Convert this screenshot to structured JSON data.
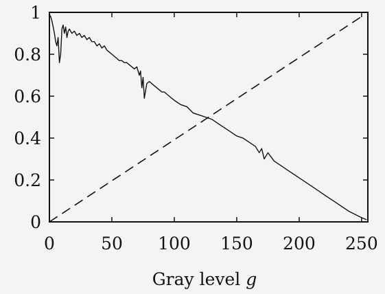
{
  "chart_data": {
    "type": "line",
    "title": "",
    "xlabel": "Gray level ",
    "xlabel_var": "g",
    "ylabel": "",
    "xlim": [
      0,
      255
    ],
    "ylim": [
      0,
      1
    ],
    "xticks": [
      "0",
      "50",
      "100",
      "150",
      "200",
      "250"
    ],
    "yticks": [
      "0",
      "0.2",
      "0.4",
      "0.6",
      "0.8",
      "1"
    ],
    "grid": false,
    "legend": "none",
    "series": [
      {
        "style": "solid",
        "color": "#111111",
        "x": [
          0,
          1,
          2,
          3,
          4,
          5,
          6,
          7,
          8,
          9,
          10,
          11,
          12,
          13,
          14,
          15,
          16,
          18,
          20,
          22,
          24,
          26,
          28,
          30,
          32,
          34,
          36,
          38,
          40,
          42,
          44,
          46,
          48,
          50,
          52,
          54,
          56,
          58,
          60,
          62,
          64,
          66,
          68,
          70,
          72,
          73,
          74,
          75,
          76,
          78,
          80,
          82,
          84,
          86,
          88,
          90,
          92,
          94,
          96,
          98,
          100,
          105,
          110,
          115,
          120,
          125,
          130,
          135,
          140,
          145,
          150,
          155,
          160,
          165,
          168,
          170,
          172,
          175,
          180,
          185,
          190,
          200,
          210,
          220,
          230,
          240,
          250,
          254
        ],
        "y": [
          0.99,
          0.98,
          0.96,
          0.93,
          0.9,
          0.86,
          0.84,
          0.88,
          0.76,
          0.8,
          0.92,
          0.94,
          0.9,
          0.93,
          0.88,
          0.91,
          0.92,
          0.9,
          0.91,
          0.89,
          0.9,
          0.88,
          0.89,
          0.87,
          0.88,
          0.86,
          0.86,
          0.84,
          0.85,
          0.83,
          0.84,
          0.82,
          0.81,
          0.8,
          0.79,
          0.78,
          0.77,
          0.77,
          0.76,
          0.76,
          0.75,
          0.74,
          0.73,
          0.74,
          0.7,
          0.72,
          0.64,
          0.69,
          0.59,
          0.66,
          0.67,
          0.66,
          0.65,
          0.64,
          0.63,
          0.62,
          0.62,
          0.61,
          0.6,
          0.59,
          0.58,
          0.56,
          0.55,
          0.52,
          0.51,
          0.5,
          0.49,
          0.47,
          0.45,
          0.43,
          0.41,
          0.4,
          0.38,
          0.36,
          0.33,
          0.35,
          0.3,
          0.33,
          0.29,
          0.27,
          0.25,
          0.21,
          0.17,
          0.13,
          0.09,
          0.05,
          0.02,
          0.01
        ]
      },
      {
        "style": "dashed",
        "color": "#111111",
        "x": [
          0,
          250
        ],
        "y": [
          0,
          0.98
        ]
      }
    ]
  }
}
